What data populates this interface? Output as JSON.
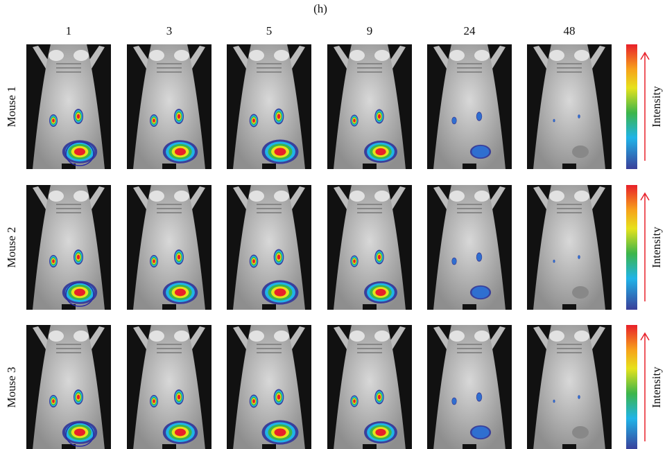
{
  "header": {
    "title": "(h)"
  },
  "columns": [
    "1",
    "3",
    "5",
    "9",
    "24",
    "48"
  ],
  "rows": [
    {
      "label": "Mouse 1",
      "colorbar_label": "Intensity"
    },
    {
      "label": "Mouse 2",
      "colorbar_label": "Intensity"
    },
    {
      "label": "Mouse 3",
      "colorbar_label": "Intensity"
    }
  ]
}
